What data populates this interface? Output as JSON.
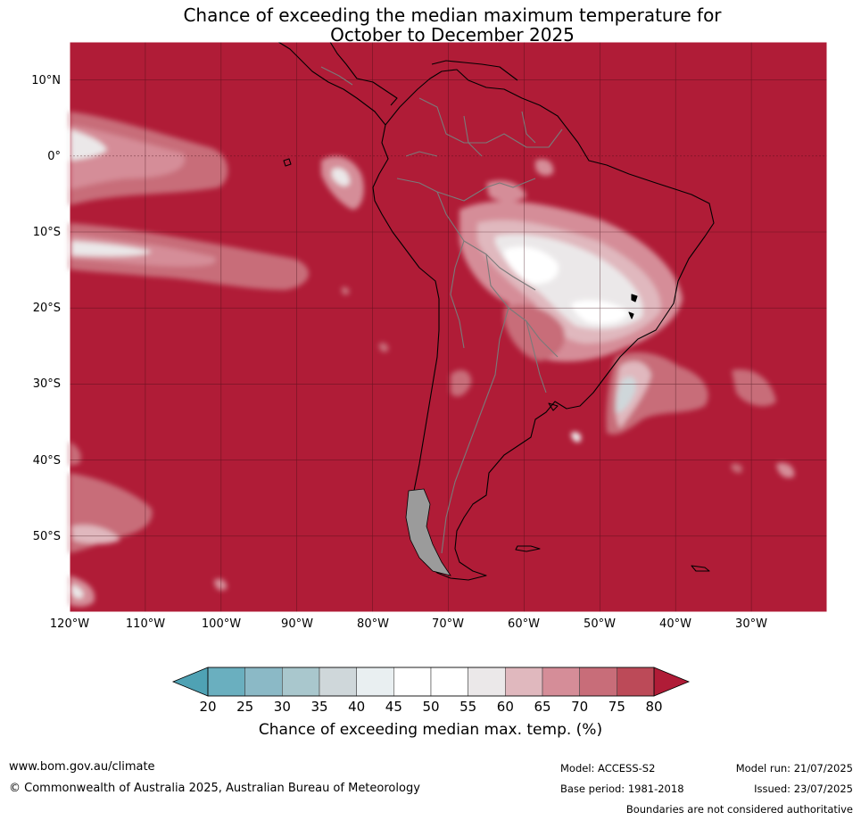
{
  "title": {
    "line1": "Chance of exceeding the median maximum temperature for",
    "line2": "October to December 2025"
  },
  "map": {
    "projection": "equirectangular",
    "extent": {
      "lon_min": -120,
      "lon_max": -20,
      "lat_min": -60,
      "lat_max": 15
    },
    "lat_labels": [
      "10°N",
      "0°",
      "10°S",
      "20°S",
      "30°S",
      "40°S",
      "50°S"
    ],
    "lon_labels": [
      "120°W",
      "110°W",
      "100°W",
      "90°W",
      "80°W",
      "70°W",
      "60°W",
      "50°W",
      "40°W",
      "30°W"
    ],
    "background_color": "#b01c37",
    "gridlines": true
  },
  "colorbar": {
    "ticks": [
      "20",
      "25",
      "30",
      "35",
      "40",
      "45",
      "50",
      "55",
      "60",
      "65",
      "70",
      "75",
      "80"
    ],
    "colors": [
      "#6aafbf",
      "#8bb9c6",
      "#a9c7cd",
      "#cfd7da",
      "#e9eff1",
      "#ffffff",
      "#ffffff",
      "#ebe8e9",
      "#e0b8be",
      "#d58d98",
      "#c86d79",
      "#bc4a58"
    ],
    "under_color": "#4fa2b4",
    "over_color": "#b01c37",
    "label": "Chance of exceeding median max. temp. (%)"
  },
  "footer": {
    "website": "www.bom.gov.au/climate",
    "copyright": "© Commonwealth of Australia 2025, Australian Bureau of Meteorology",
    "model": "Model: ACCESS-S2",
    "base_period": "Base period: 1981-2018",
    "model_run": "Model run: 21/07/2025",
    "issued": "Issued: 23/07/2025",
    "disclaimer": "Boundaries are not considered authoritative"
  }
}
